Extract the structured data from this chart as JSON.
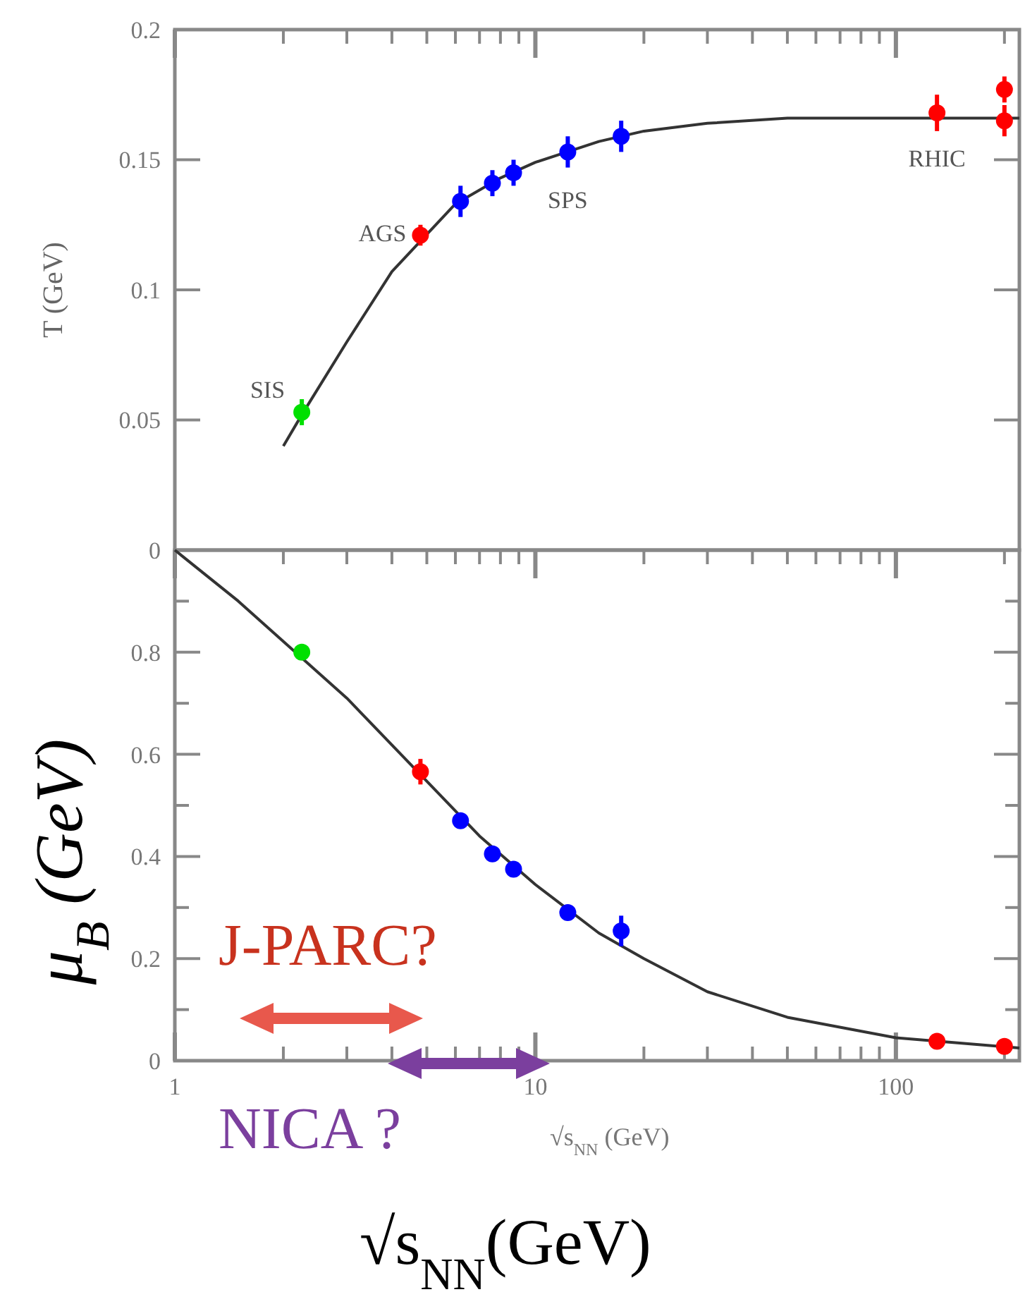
{
  "chart_data": [
    {
      "type": "scatter",
      "ylabel": "T (GeV)",
      "xlim": [
        1,
        220
      ],
      "ylim": [
        0,
        0.2
      ],
      "log": "x",
      "tick_labels": "y",
      "marker": "circle",
      "xticks": [
        {
          "value": 1,
          "label": null
        },
        {
          "value": 2,
          "label": null
        },
        {
          "value": 3,
          "label": null
        },
        {
          "value": 4,
          "label": null
        },
        {
          "value": 5,
          "label": null
        },
        {
          "value": 6,
          "label": null
        },
        {
          "value": 7,
          "label": null
        },
        {
          "value": 8,
          "label": null
        },
        {
          "value": 9,
          "label": null
        },
        {
          "value": 10,
          "label": null
        },
        {
          "value": 20,
          "label": null
        },
        {
          "value": 30,
          "label": null
        },
        {
          "value": 40,
          "label": null
        },
        {
          "value": 50,
          "label": null
        },
        {
          "value": 60,
          "label": null
        },
        {
          "value": 70,
          "label": null
        },
        {
          "value": 80,
          "label": null
        },
        {
          "value": 90,
          "label": null
        },
        {
          "value": 100,
          "label": null
        },
        {
          "value": 200,
          "label": null
        }
      ],
      "yticks": [
        0,
        0.05,
        0.1,
        0.15,
        0.2
      ],
      "series": [
        {
          "type": "line",
          "marker": "none",
          "color": "#333333",
          "x": [
            2,
            2.25,
            3,
            4,
            6,
            8,
            10,
            15,
            20,
            30,
            50,
            100,
            220
          ],
          "values": [
            0.04,
            0.052,
            0.08,
            0.107,
            0.133,
            0.143,
            0.149,
            0.157,
            0.161,
            0.164,
            0.166,
            0.166,
            0.166
          ]
        },
        {
          "color": "#00e000",
          "x": [
            2.25
          ],
          "values": [
            0.053
          ],
          "errors": [
            0.005
          ]
        },
        {
          "color": "#ff0000",
          "x": [
            4.8,
            130,
            200,
            200
          ],
          "values": [
            0.121,
            0.168,
            0.177,
            0.165
          ],
          "errors": [
            0.004,
            0.007,
            0.005,
            0.006
          ]
        },
        {
          "color": "#0000ff",
          "x": [
            6.2,
            7.6,
            8.7,
            12.3,
            17.3
          ],
          "values": [
            0.134,
            0.141,
            0.145,
            0.153,
            0.159
          ],
          "errors": [
            0.006,
            0.005,
            0.005,
            0.006,
            0.006
          ]
        }
      ],
      "annotations": [
        {
          "text": "SIS",
          "x": 2.25,
          "y": 0.053
        },
        {
          "text": "AGS",
          "x": 4.8,
          "y": 0.121
        },
        {
          "text": "SPS",
          "x": 12.3,
          "y": 0.153
        },
        {
          "text": "RHIC",
          "x": 130,
          "y": 0.168
        }
      ]
    },
    {
      "type": "scatter",
      "ylabel": "μ$_{B}$ (GeV)",
      "xlabel": "√s$_{NN}$ (GeV)",
      "xlim": [
        1,
        220
      ],
      "ylim": [
        0,
        1
      ],
      "log": "x",
      "marker": "circle",
      "xticks": [
        1,
        {
          "value": 2,
          "label": null
        },
        {
          "value": 3,
          "label": null
        },
        {
          "value": 4,
          "label": null
        },
        {
          "value": 5,
          "label": null
        },
        {
          "value": 6,
          "label": null
        },
        {
          "value": 7,
          "label": null
        },
        {
          "value": 8,
          "label": null
        },
        {
          "value": 9,
          "label": null
        },
        10,
        {
          "value": 20,
          "label": null
        },
        {
          "value": 30,
          "label": null
        },
        {
          "value": 40,
          "label": null
        },
        {
          "value": 50,
          "label": null
        },
        {
          "value": 60,
          "label": null
        },
        {
          "value": 70,
          "label": null
        },
        {
          "value": 80,
          "label": null
        },
        {
          "value": 90,
          "label": null
        },
        100,
        {
          "value": 200,
          "label": null
        }
      ],
      "yticks": [
        0,
        {
          "value": 0.1,
          "label": null
        },
        0.2,
        {
          "value": 0.3,
          "label": null
        },
        0.4,
        {
          "value": 0.5,
          "label": null
        },
        0.6,
        {
          "value": 0.7,
          "label": null
        },
        0.8,
        {
          "value": 0.9,
          "label": null
        }
      ],
      "series": [
        {
          "type": "line",
          "marker": "none",
          "color": "#333333",
          "x": [
            1,
            1.5,
            3,
            7,
            10,
            15,
            20,
            30,
            50,
            100,
            220
          ],
          "values": [
            1,
            0.9,
            0.71,
            0.44,
            0.345,
            0.25,
            0.2,
            0.135,
            0.085,
            0.045,
            0.025
          ]
        },
        {
          "color": "#00e000",
          "x": [
            2.25
          ],
          "values": [
            0.8
          ],
          "errors": [
            0.015
          ]
        },
        {
          "color": "#ff0000",
          "x": [
            4.8,
            130,
            200
          ],
          "values": [
            0.566,
            0.038,
            0.028
          ],
          "errors": [
            0.025,
            0.008,
            0.006
          ]
        },
        {
          "color": "#0000ff",
          "x": [
            6.2,
            7.6,
            8.7,
            12.3,
            17.3
          ],
          "values": [
            0.47,
            0.405,
            0.375,
            0.29,
            0.254
          ],
          "errors": [
            0.01,
            0.01,
            0.012,
            0.012,
            0.03
          ]
        }
      ],
      "annotations": [
        "J-PARC?",
        "NICA ?",
        "√s$_{NN}$(GeV)"
      ]
    }
  ]
}
